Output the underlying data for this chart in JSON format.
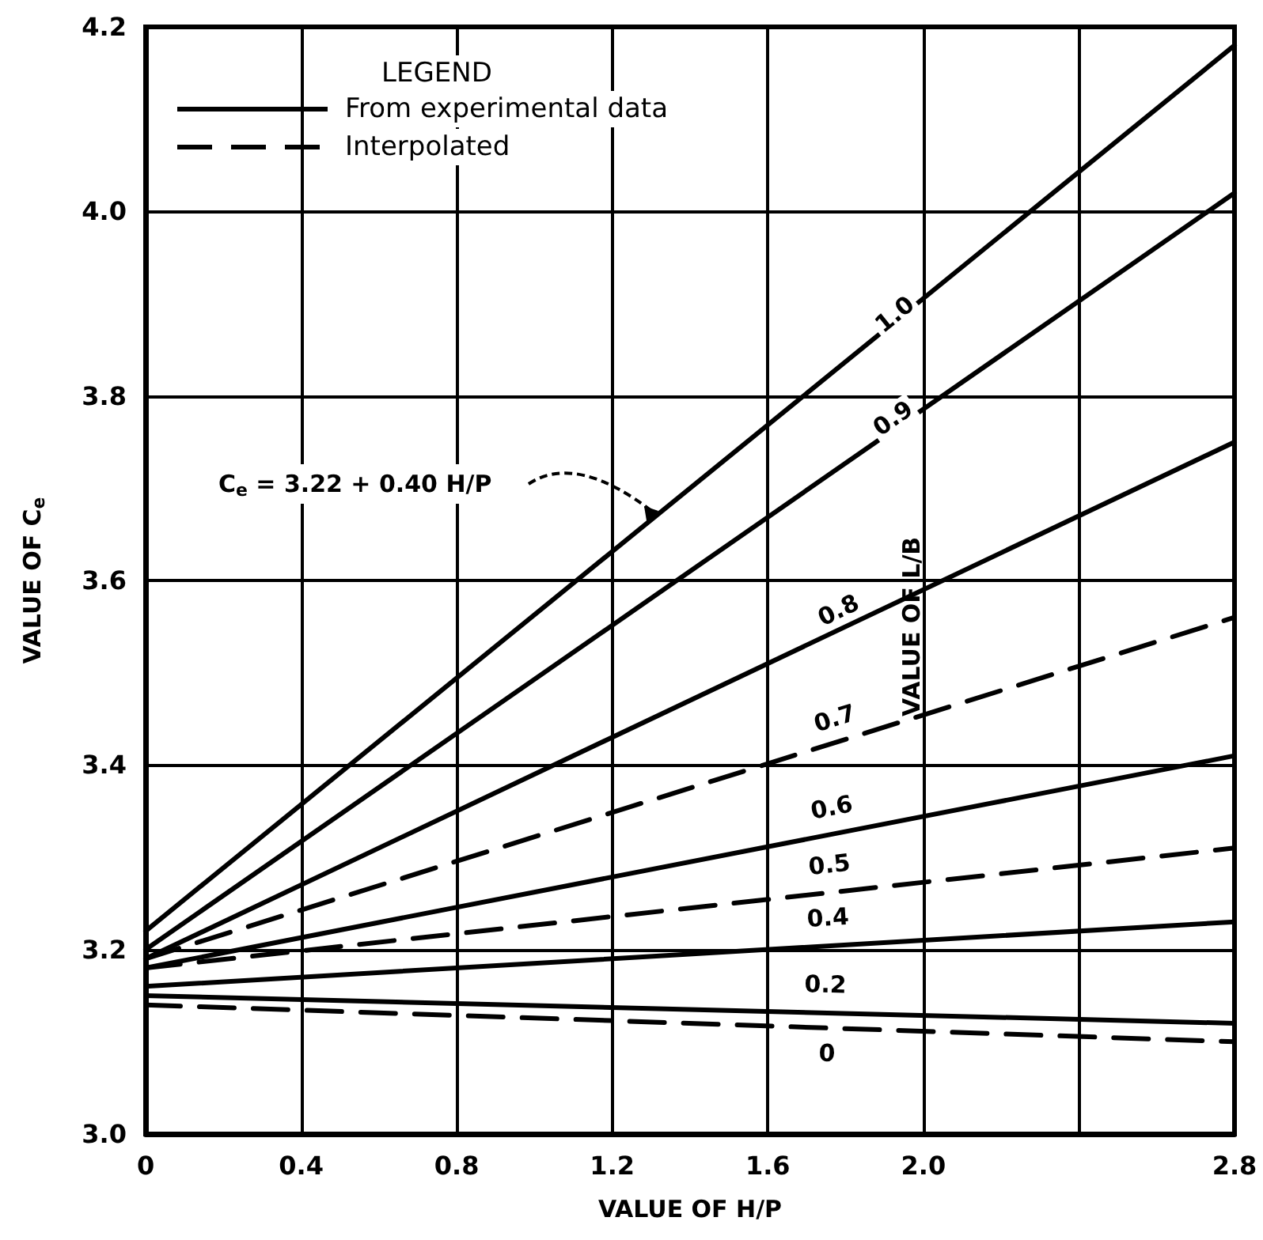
{
  "chart_data": {
    "type": "line",
    "xlabel": "VALUE OF H/P",
    "ylabel": "VALUE OF C$_{e}$",
    "xlim": [
      0,
      2.8
    ],
    "xticks": [
      0,
      0.4,
      0.8,
      1.2,
      1.6,
      {
        "value": 2.0,
        "label": "2.0"
      },
      {
        "value": 2.4,
        "label": null
      },
      2.8
    ],
    "ylim": [
      3.0,
      4.2
    ],
    "yticks": [
      {
        "value": 3.0,
        "label": "3.0"
      },
      3.2,
      3.4,
      3.6,
      3.8,
      {
        "value": 4.0,
        "label": "4.0"
      },
      4.2
    ],
    "grid": true,
    "marker": "none",
    "x": [
      0,
      2.8
    ],
    "series": [
      {
        "name": "1.0",
        "color": "#000000",
        "line_style": "solid",
        "values": [
          3.22,
          4.18
        ]
      },
      {
        "name": "0.9",
        "color": "#000000",
        "line_style": "solid",
        "values": [
          3.2,
          4.02
        ]
      },
      {
        "name": "0.8",
        "color": "#000000",
        "line_style": "solid",
        "values": [
          3.19,
          3.75
        ]
      },
      {
        "name": "0.7",
        "color": "#000000",
        "line_style": "dashed",
        "values": [
          3.19,
          3.56
        ]
      },
      {
        "name": "0.6",
        "color": "#000000",
        "line_style": "solid",
        "values": [
          3.18,
          3.41
        ]
      },
      {
        "name": "0.5",
        "color": "#000000",
        "line_style": "dashed",
        "values": [
          3.18,
          3.31
        ]
      },
      {
        "name": "0.4",
        "color": "#000000",
        "line_style": "solid",
        "values": [
          3.16,
          3.23
        ]
      },
      {
        "name": "0.2",
        "color": "#000000",
        "line_style": "solid",
        "values": [
          3.15,
          3.12
        ]
      },
      {
        "name": "0",
        "color": "#000000",
        "line_style": "dashed",
        "values": [
          3.14,
          3.1
        ]
      }
    ],
    "annotations": [
      "LEGEND",
      "From experimental data",
      "Interpolated",
      "VALUE OF L/B",
      "C$_{e}$ = 3.22 + 0.40 H/P"
    ]
  }
}
